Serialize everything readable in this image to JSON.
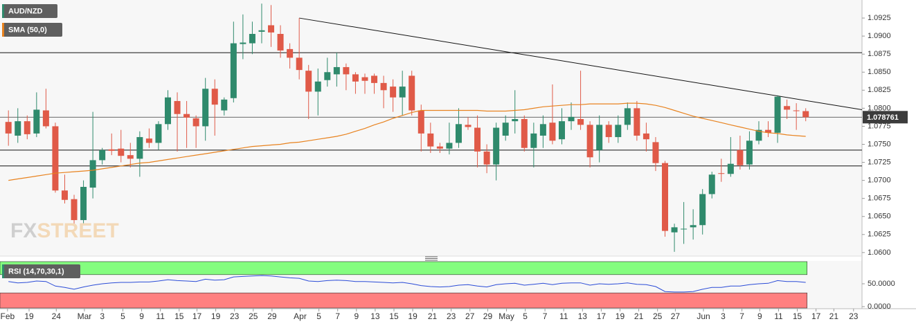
{
  "chart_data": [
    {
      "type": "candlestick",
      "name": "AUD/NZD",
      "up_color": "#2f8a6c",
      "down_color": "#e05a48",
      "xlim": [
        -0.9,
        91
      ],
      "ylim": [
        1.0597,
        1.095
      ],
      "yticks": [
        {
          "value": 1.06,
          "label": "1.0600"
        },
        1.0625,
        {
          "value": 1.065,
          "label": "1.0650"
        },
        1.0675,
        {
          "value": 1.07,
          "label": "1.0700"
        },
        1.0725,
        {
          "value": 1.075,
          "label": "1.0750"
        },
        1.0775,
        {
          "value": 1.08,
          "label": "1.0800"
        },
        1.0825,
        {
          "value": 1.085,
          "label": "1.0850"
        },
        1.0875,
        {
          "value": 1.09,
          "label": "1.0900"
        },
        1.0925
      ],
      "open": [
        1.0781,
        1.0762,
        1.0782,
        1.0765,
        1.0797,
        1.0775,
        1.0686,
        1.0674,
        1.0645,
        1.069,
        1.0728,
        1.0743,
        1.0744,
        1.0735,
        1.073,
        1.0758,
        1.0752,
        1.0778,
        1.081,
        1.0792,
        1.0786,
        1.0775,
        1.0827,
        1.0797,
        1.0814,
        1.0889,
        1.089,
        1.0906,
        1.0915,
        1.0903,
        1.0882,
        1.087,
        1.0852,
        1.0823,
        1.0839,
        1.0847,
        1.0857,
        1.0847,
        1.0843,
        1.0845,
        1.0835,
        1.083,
        1.0815,
        1.0845,
        1.0797,
        1.0765,
        1.0747,
        1.0744,
        1.0752,
        1.0777,
        1.0773,
        1.074,
        1.0722,
        1.0762,
        1.0782,
        1.0785,
        1.0745,
        1.0762,
        1.078,
        1.0757,
        1.0782,
        1.0785,
        1.0777,
        1.0742,
        1.0777,
        1.076,
        1.0777,
        1.08,
        1.0765,
        1.0753,
        1.0724,
        1.0628,
        1.0633,
        1.0635,
        1.0638,
        1.0681,
        1.071,
        1.0709,
        1.0742,
        1.0722,
        1.0755,
        1.077,
        1.0766,
        1.0803,
        1.0797,
        1.0796
      ],
      "high": [
        1.0797,
        1.08,
        1.079,
        1.0822,
        1.0827,
        1.078,
        1.0708,
        1.068,
        1.07,
        1.0795,
        1.0745,
        1.0765,
        1.077,
        1.0752,
        1.0768,
        1.0772,
        1.0782,
        1.0825,
        1.0822,
        1.081,
        1.079,
        1.0842,
        1.084,
        1.0815,
        1.092,
        1.093,
        1.092,
        1.0945,
        1.0943,
        1.0915,
        1.089,
        1.0925,
        1.086,
        1.0855,
        1.087,
        1.0877,
        1.0862,
        1.085,
        1.0848,
        1.0848,
        1.0845,
        1.084,
        1.0852,
        1.0852,
        1.0805,
        1.078,
        1.0752,
        1.078,
        1.08,
        1.0788,
        1.079,
        1.075,
        1.078,
        1.079,
        1.0825,
        1.079,
        1.078,
        1.079,
        1.0833,
        1.08,
        1.0808,
        1.0852,
        1.0782,
        1.079,
        1.0782,
        1.079,
        1.0808,
        1.081,
        1.078,
        1.076,
        1.0727,
        1.064,
        1.067,
        1.066,
        1.0688,
        1.0712,
        1.073,
        1.076,
        1.0762,
        1.0768,
        1.0782,
        1.0782,
        1.0818,
        1.0812,
        1.0807,
        1.08
      ],
      "low": [
        1.0748,
        1.0752,
        1.0757,
        1.076,
        1.0772,
        1.0683,
        1.0668,
        1.0638,
        1.064,
        1.0675,
        1.0722,
        1.0735,
        1.0725,
        1.0718,
        1.0705,
        1.0745,
        1.0742,
        1.077,
        1.074,
        1.0745,
        1.0745,
        1.0755,
        1.0762,
        1.079,
        1.0808,
        1.0868,
        1.0875,
        1.089,
        1.0885,
        1.087,
        1.0855,
        1.084,
        1.0785,
        1.079,
        1.083,
        1.083,
        1.0825,
        1.082,
        1.082,
        1.082,
        1.08,
        1.0795,
        1.079,
        1.079,
        1.074,
        1.0738,
        1.0738,
        1.0736,
        1.0745,
        1.077,
        1.0718,
        1.071,
        1.07,
        1.0755,
        1.0765,
        1.074,
        1.0718,
        1.0745,
        1.075,
        1.075,
        1.077,
        1.077,
        1.0718,
        1.0725,
        1.0752,
        1.0752,
        1.077,
        1.0755,
        1.074,
        1.0713,
        1.0622,
        1.0601,
        1.0612,
        1.0618,
        1.0625,
        1.0675,
        1.0698,
        1.0705,
        1.0715,
        1.0715,
        1.075,
        1.076,
        1.0752,
        1.0785,
        1.077,
        1.0782
      ],
      "close": [
        1.0765,
        1.0782,
        1.0764,
        1.0798,
        1.0775,
        1.0686,
        1.0673,
        1.0645,
        1.0691,
        1.0728,
        1.0742,
        1.0741,
        1.0734,
        1.073,
        1.076,
        1.0752,
        1.0778,
        1.0815,
        1.0792,
        1.0787,
        1.0775,
        1.0827,
        1.0805,
        1.0812,
        1.089,
        1.0891,
        1.0903,
        1.0908,
        1.0905,
        1.088,
        1.087,
        1.0853,
        1.0823,
        1.0837,
        1.085,
        1.0857,
        1.0847,
        1.0837,
        1.0838,
        1.0835,
        1.0825,
        1.0815,
        1.083,
        1.0797,
        1.0765,
        1.0747,
        1.0744,
        1.0752,
        1.0778,
        1.0774,
        1.074,
        1.0722,
        1.0773,
        1.078,
        1.0785,
        1.0745,
        1.0765,
        1.0778,
        1.0755,
        1.0782,
        1.0788,
        1.0777,
        1.0732,
        1.0777,
        1.076,
        1.0777,
        1.08,
        1.0762,
        1.0757,
        1.0724,
        1.063,
        1.0635,
        1.0633,
        1.0638,
        1.0681,
        1.0708,
        1.0709,
        1.0723,
        1.0721,
        1.0755,
        1.077,
        1.0766,
        1.0816,
        1.0798,
        1.0796,
        1.078761
      ],
      "sma": {
        "name": "SMA (50,0)",
        "color": "#e8821e",
        "values": [
          1.07,
          1.0702,
          1.0704,
          1.0706,
          1.0708,
          1.071,
          1.0711,
          1.0712,
          1.0713,
          1.0714,
          1.0716,
          1.0718,
          1.072,
          1.0722,
          1.0724,
          1.0725,
          1.0727,
          1.0729,
          1.0731,
          1.0733,
          1.0735,
          1.0737,
          1.0739,
          1.0741,
          1.0743,
          1.0745,
          1.0747,
          1.0748,
          1.0749,
          1.075,
          1.0752,
          1.0753,
          1.0755,
          1.0757,
          1.0759,
          1.0761,
          1.0764,
          1.0768,
          1.0772,
          1.0777,
          1.0781,
          1.0786,
          1.079,
          1.0794,
          1.0797,
          1.0797,
          1.0797,
          1.0797,
          1.0797,
          1.0797,
          1.0797,
          1.0796,
          1.0796,
          1.0796,
          1.0797,
          1.0798,
          1.08,
          1.0802,
          1.0803,
          1.0804,
          1.0805,
          1.0805,
          1.0806,
          1.0806,
          1.0806,
          1.0806,
          1.0807,
          1.0807,
          1.0806,
          1.0804,
          1.0801,
          1.0797,
          1.0793,
          1.0789,
          1.0786,
          1.0783,
          1.078,
          1.0777,
          1.0774,
          1.0771,
          1.0768,
          1.0766,
          1.0765,
          1.0763,
          1.0762,
          1.0761
        ]
      },
      "hlines": [
        1.0877,
        1.0742,
        1.072
      ],
      "trendline": {
        "x": [
          31,
          91
        ],
        "y": [
          1.0925,
          1.0798
        ]
      },
      "watermark": [
        "FX",
        "STREET"
      ]
    },
    {
      "type": "line",
      "xlim": [
        -0.9,
        91
      ],
      "ylim": [
        0,
        100
      ],
      "yticks": [
        {
          "value": 0,
          "label": "0.0000"
        },
        {
          "value": 50,
          "label": "50.0000"
        }
      ],
      "overbought": 70,
      "oversold": 30,
      "series": [
        {
          "name": "RSI (14,70,30,1)",
          "color": "#2a4bd7",
          "values": [
            55,
            52,
            53,
            56,
            55,
            45,
            42,
            38,
            43,
            47,
            50,
            52,
            53,
            53,
            54,
            54,
            56,
            59,
            57,
            56,
            55,
            60,
            58,
            59,
            65,
            66,
            67,
            68,
            67,
            65,
            63,
            62,
            56,
            55,
            57,
            58,
            57,
            55,
            55,
            54,
            53,
            52,
            53,
            50,
            46,
            44,
            43,
            44,
            47,
            48,
            45,
            43,
            48,
            50,
            51,
            47,
            49,
            51,
            48,
            51,
            52,
            52,
            47,
            50,
            49,
            50,
            52,
            49,
            48,
            44,
            33,
            32,
            32,
            33,
            38,
            42,
            42,
            45,
            45,
            48,
            50,
            51,
            57,
            55,
            55,
            53
          ]
        }
      ],
      "xticks": [
        {
          "value": -0.1,
          "label": "Feb"
        },
        {
          "value": 2.2,
          "label": "19"
        },
        {
          "value": 5.1,
          "label": "24"
        },
        {
          "value": 8.1,
          "label": "Mar"
        },
        {
          "value": 10,
          "label": "3"
        },
        {
          "value": 12.2,
          "label": "5"
        },
        {
          "value": 14.2,
          "label": "9"
        },
        {
          "value": 16.2,
          "label": "11"
        },
        {
          "value": 18.2,
          "label": "15"
        },
        {
          "value": 20.1,
          "label": "17"
        },
        {
          "value": 22.1,
          "label": "19"
        },
        {
          "value": 24.1,
          "label": "23"
        },
        {
          "value": 26.1,
          "label": "25"
        },
        {
          "value": 28.1,
          "label": "29"
        },
        {
          "value": 31.1,
          "label": "Apr"
        },
        {
          "value": 33.1,
          "label": "5"
        },
        {
          "value": 35.1,
          "label": "7"
        },
        {
          "value": 37.1,
          "label": "9"
        },
        {
          "value": 39.1,
          "label": "13"
        },
        {
          "value": 41.1,
          "label": "15"
        },
        {
          "value": 43.1,
          "label": "19"
        },
        {
          "value": 45.2,
          "label": "21"
        },
        {
          "value": 47.2,
          "label": "23"
        },
        {
          "value": 49.2,
          "label": "27"
        },
        {
          "value": 51.1,
          "label": "29"
        },
        {
          "value": 53.1,
          "label": "May"
        },
        {
          "value": 55.1,
          "label": "5"
        },
        {
          "value": 57.2,
          "label": "7"
        },
        {
          "value": 59.2,
          "label": "11"
        },
        {
          "value": 61.2,
          "label": "13"
        },
        {
          "value": 63.2,
          "label": "17"
        },
        {
          "value": 65.2,
          "label": "19"
        },
        {
          "value": 67.2,
          "label": "21"
        },
        {
          "value": 69.2,
          "label": "25"
        },
        {
          "value": 71.1,
          "label": "27"
        },
        {
          "value": 74.1,
          "label": "Jun"
        },
        {
          "value": 76.2,
          "label": "3"
        },
        {
          "value": 78.2,
          "label": "7"
        },
        {
          "value": 80.1,
          "label": "9"
        },
        {
          "value": 82.1,
          "label": "11"
        },
        {
          "value": 84.1,
          "label": "15"
        },
        {
          "value": 86.1,
          "label": "17"
        },
        {
          "value": 88,
          "label": "21"
        },
        {
          "value": 90.1,
          "label": "23"
        }
      ]
    }
  ]
}
